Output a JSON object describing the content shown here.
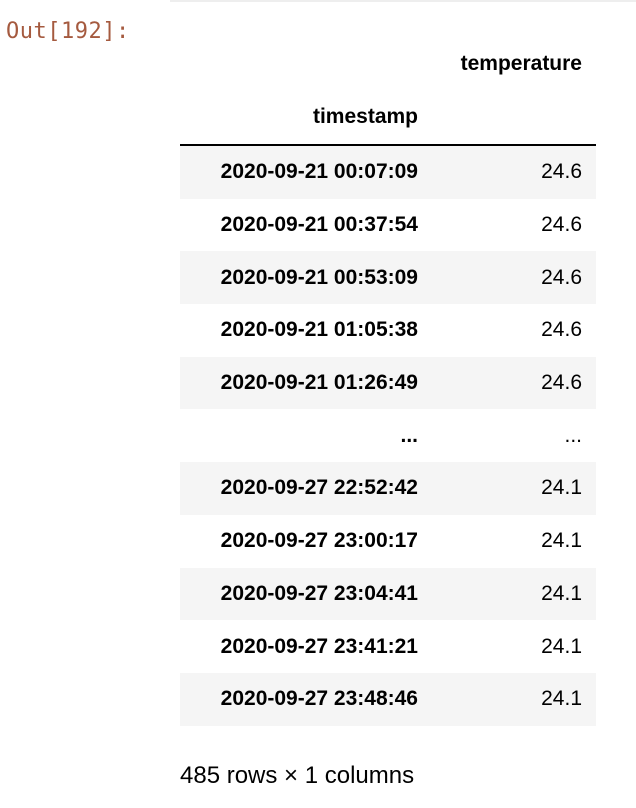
{
  "output": {
    "prompt": "Out[192]:"
  },
  "dataframe": {
    "columns": [
      "temperature"
    ],
    "index_name": "timestamp",
    "rows": [
      {
        "timestamp": "2020-09-21 00:07:09",
        "temperature": "24.6"
      },
      {
        "timestamp": "2020-09-21 00:37:54",
        "temperature": "24.6"
      },
      {
        "timestamp": "2020-09-21 00:53:09",
        "temperature": "24.6"
      },
      {
        "timestamp": "2020-09-21 01:05:38",
        "temperature": "24.6"
      },
      {
        "timestamp": "2020-09-21 01:26:49",
        "temperature": "24.6"
      },
      {
        "timestamp": "...",
        "temperature": "..."
      },
      {
        "timestamp": "2020-09-27 22:52:42",
        "temperature": "24.1"
      },
      {
        "timestamp": "2020-09-27 23:00:17",
        "temperature": "24.1"
      },
      {
        "timestamp": "2020-09-27 23:04:41",
        "temperature": "24.1"
      },
      {
        "timestamp": "2020-09-27 23:41:21",
        "temperature": "24.1"
      },
      {
        "timestamp": "2020-09-27 23:48:46",
        "temperature": "24.1"
      }
    ],
    "shape_text": "485 rows × 1 columns"
  }
}
